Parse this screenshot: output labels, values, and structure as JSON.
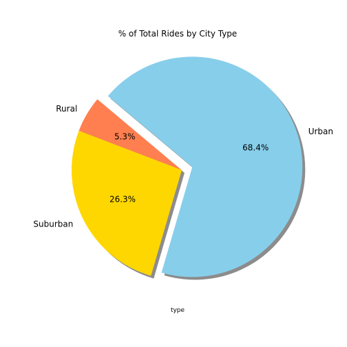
{
  "chart_data": {
    "type": "pie",
    "title": "% of Total Rides by City Type",
    "xlabel": "type",
    "categories": [
      "Rural",
      "Suburban",
      "Urban"
    ],
    "values": [
      5.3,
      26.3,
      68.4
    ],
    "value_labels": [
      "5.3%",
      "26.3%",
      "68.4%"
    ],
    "colors": [
      "#FF7F50",
      "#FFD700",
      "#87CEEB"
    ],
    "explode": [
      0,
      0,
      0.1
    ],
    "start_angle_deg": 140,
    "shadow": true
  }
}
